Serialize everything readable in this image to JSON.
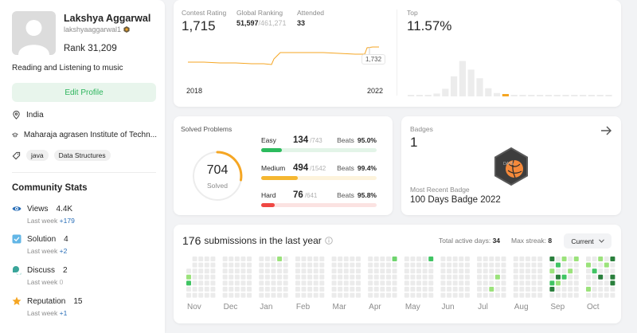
{
  "profile": {
    "name": "Lakshya Aggarwal",
    "handle": "lakshyaaggarwal1",
    "rank_label": "Rank",
    "rank": "31,209",
    "bio": "Reading and Listening to music",
    "edit_button": "Edit Profile",
    "location": "India",
    "school": "Maharaja agrasen Institute of Techn...",
    "skills": [
      "java",
      "Data Structures"
    ],
    "icons": {
      "location": "map-pin-icon",
      "school": "graduation-cap-icon",
      "skills": "tag-icon"
    }
  },
  "community": {
    "title": "Community Stats",
    "stats": [
      {
        "label": "Views",
        "value": "4.4K",
        "sub": "Last week",
        "delta": "+179",
        "icon": "eye-icon",
        "color": "#2a6fb8"
      },
      {
        "label": "Solution",
        "value": "4",
        "sub": "Last week",
        "delta": "+2",
        "icon": "checkbox-icon",
        "color": "#62b6e6"
      },
      {
        "label": "Discuss",
        "value": "2",
        "sub": "Last week",
        "delta": "0",
        "icon": "chat-icon",
        "color": "#3aa59a"
      },
      {
        "label": "Reputation",
        "value": "15",
        "sub": "Last week",
        "delta": "+1",
        "icon": "star-icon",
        "color": "#f5a623"
      }
    ]
  },
  "contest": {
    "rating_label": "Contest Rating",
    "rating": "1,715",
    "global_label": "Global Ranking",
    "global_rank": "51,597",
    "global_total": "/461,271",
    "attended_label": "Attended",
    "attended": "33",
    "tooltip": "1,732",
    "year_start": "2018",
    "year_end": "2022",
    "top_label": "Top",
    "top_value": "11.57%",
    "line_color": "#f5a623",
    "histogram": [
      0.03,
      0.03,
      0.03,
      0.06,
      0.16,
      0.42,
      0.74,
      0.56,
      0.38,
      0.17,
      0.07,
      0.05,
      0.03,
      0.03,
      0.03,
      0.03,
      0.03,
      0.03,
      0.03,
      0.03,
      0.03,
      0.03,
      0.03,
      0.03
    ],
    "highlight_index": 11
  },
  "solved": {
    "title": "Solved Problems",
    "total": "704",
    "total_label": "Solved",
    "difficulties": [
      {
        "name": "Easy",
        "count": "134",
        "total": "/743",
        "beats_label": "Beats",
        "beats": "95.0%",
        "color": "#2cbb5d",
        "track": "#e3f4e8",
        "ratio": 0.18
      },
      {
        "name": "Medium",
        "count": "494",
        "total": "/1542",
        "beats_label": "Beats",
        "beats": "99.4%",
        "color": "#f5b731",
        "track": "#fdf3dc",
        "ratio": 0.32
      },
      {
        "name": "Hard",
        "count": "76",
        "total": "/641",
        "beats_label": "Beats",
        "beats": "95.8%",
        "color": "#ef4743",
        "track": "#fbe3e2",
        "ratio": 0.12
      }
    ]
  },
  "badges": {
    "title": "Badges",
    "count": "1",
    "recent_label": "Most Recent Badge",
    "recent_name": "100 Days Badge 2022",
    "badge_text": "DAYS"
  },
  "submissions": {
    "count": "176",
    "label": "submissions in the last year",
    "active_label": "Total active days:",
    "active_days": "34",
    "streak_label": "Max streak:",
    "streak": "8",
    "select_value": "Current",
    "months": [
      "Nov",
      "Dec",
      "Jan",
      "Feb",
      "Mar",
      "Apr",
      "May",
      "Jun",
      "Jul",
      "Aug",
      "Sep",
      "Oct"
    ]
  }
}
